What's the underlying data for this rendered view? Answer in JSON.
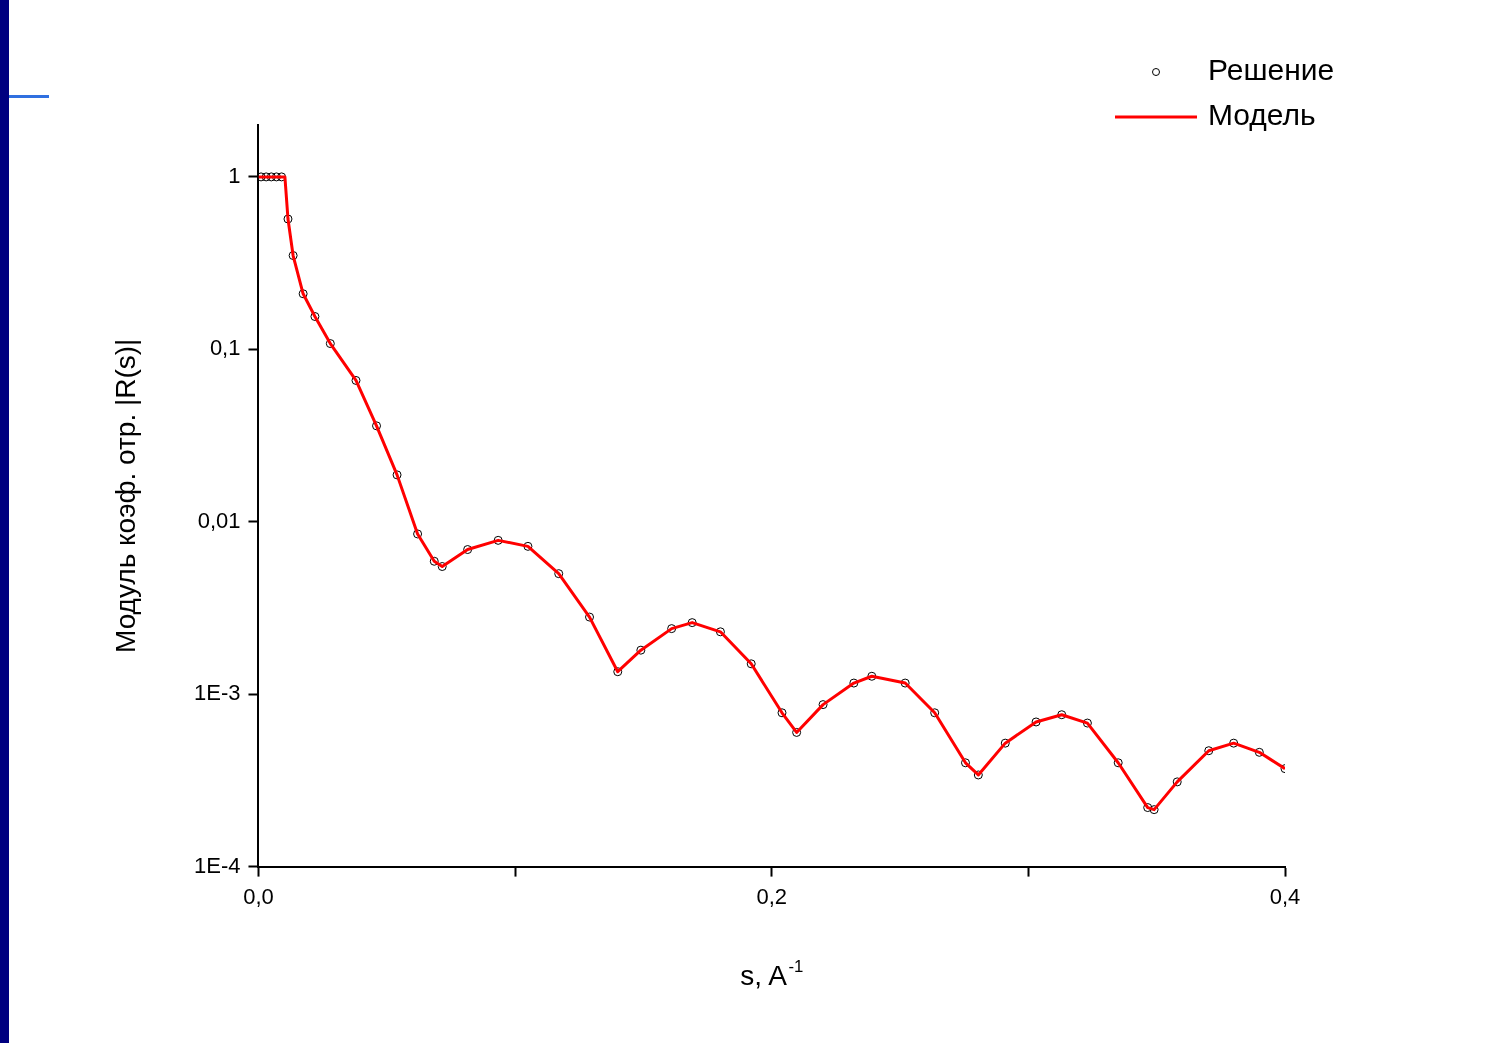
{
  "chart_data": {
    "type": "scatter",
    "xlabel": "s, A$^{-1}$",
    "ylabel": "Модуль коэф. отр. |R(s)|",
    "log": "y",
    "grid": false,
    "legend": "top right",
    "xlim": [
      0,
      0.4
    ],
    "xticks": [
      {
        "value": 0,
        "label": "0,0"
      },
      {
        "value": 0.1,
        "label": null
      },
      {
        "value": 0.2,
        "label": "0,2"
      },
      {
        "value": 0.3,
        "label": null
      },
      {
        "value": 0.4,
        "label": "0,4"
      }
    ],
    "ylim": [
      0.0001,
      2
    ],
    "yticks": [
      {
        "value": 0.0001,
        "label": "1E-4"
      },
      {
        "value": 0.001,
        "label": "1E-3"
      },
      {
        "value": 0.01,
        "label": "0,01"
      },
      {
        "value": 0.1,
        "label": "0,1"
      },
      1
    ],
    "series": [
      {
        "name": "Решение",
        "marker": "circle",
        "color": "#000000",
        "x": [
          0.001,
          0.003,
          0.005,
          0.007,
          0.009,
          0.0115,
          0.0135,
          0.0174,
          0.022,
          0.028,
          0.038,
          0.046,
          0.054,
          0.062,
          0.0685,
          0.0716,
          0.0815,
          0.0934,
          0.105,
          0.117,
          0.129,
          0.14,
          0.149,
          0.161,
          0.169,
          0.18,
          0.192,
          0.204,
          0.2097,
          0.22,
          0.232,
          0.239,
          0.252,
          0.2635,
          0.2755,
          0.2805,
          0.291,
          0.303,
          0.313,
          0.323,
          0.335,
          0.3465,
          0.349,
          0.358,
          0.3703,
          0.38,
          0.39,
          0.4
        ],
        "values": [
          1,
          1,
          1,
          1,
          1,
          0.57,
          0.35,
          0.21,
          0.155,
          0.108,
          0.066,
          0.036,
          0.0187,
          0.0085,
          0.0059,
          0.0055,
          0.0069,
          0.0078,
          0.0072,
          0.005,
          0.0028,
          0.00135,
          0.0018,
          0.0024,
          0.0026,
          0.0023,
          0.0015,
          0.00078,
          0.0006,
          0.00087,
          0.00116,
          0.00127,
          0.00116,
          0.00078,
          0.0004,
          0.00034,
          0.00052,
          0.00069,
          0.00076,
          0.00068,
          0.0004,
          0.00022,
          0.000214,
          0.00031,
          0.00047,
          0.00052,
          0.00046,
          0.00037
        ]
      },
      {
        "name": "Модель",
        "type": "line",
        "marker": "none",
        "line_style": "solid",
        "color": "#ff0000",
        "x": [
          0,
          0.0103,
          0.0115,
          0.0135,
          0.0174,
          0.022,
          0.028,
          0.038,
          0.046,
          0.054,
          0.062,
          0.0685,
          0.0716,
          0.0815,
          0.0934,
          0.105,
          0.117,
          0.129,
          0.14,
          0.149,
          0.161,
          0.169,
          0.18,
          0.192,
          0.204,
          0.2097,
          0.22,
          0.232,
          0.239,
          0.252,
          0.2635,
          0.2755,
          0.2805,
          0.291,
          0.303,
          0.313,
          0.323,
          0.335,
          0.3465,
          0.349,
          0.358,
          0.3703,
          0.38,
          0.39,
          0.4
        ],
        "values": [
          1,
          1,
          0.57,
          0.35,
          0.21,
          0.155,
          0.108,
          0.066,
          0.036,
          0.0187,
          0.0085,
          0.0059,
          0.0055,
          0.0069,
          0.0078,
          0.0072,
          0.005,
          0.0028,
          0.00135,
          0.0018,
          0.0024,
          0.0026,
          0.0023,
          0.0015,
          0.00078,
          0.0006,
          0.00087,
          0.00116,
          0.00127,
          0.00116,
          0.00078,
          0.0004,
          0.00034,
          0.00052,
          0.00069,
          0.00076,
          0.00068,
          0.0004,
          0.00022,
          0.000214,
          0.00031,
          0.00047,
          0.00052,
          0.00046,
          0.00037
        ]
      }
    ]
  }
}
